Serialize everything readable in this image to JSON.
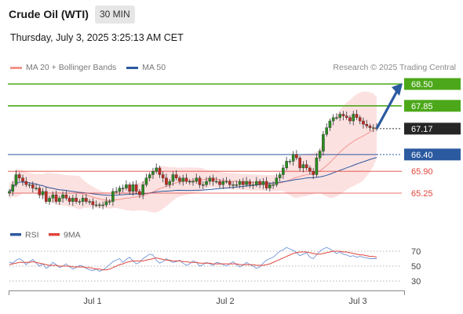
{
  "header": {
    "title": "Crude Oil (WTI)",
    "timeframe": "30 MIN",
    "datetime": "Thursday, July 3, 2025 3:25:13 AM CET"
  },
  "legend": {
    "items": [
      {
        "label": "MA 20 + Bollinger Bands",
        "color": "#f2948e"
      },
      {
        "label": "MA 50",
        "color": "#2c5aa0"
      }
    ]
  },
  "credit": "Research © 2025 Trading Central",
  "colors": {
    "green": "#4ca81a",
    "blue": "#2c5aa0",
    "red": "#e0463c",
    "dark": "#262626",
    "band": "#fbdcdc",
    "candle_up": "#2b8a20",
    "candle_down": "#c22a1f"
  },
  "chart_data": [
    {
      "type": "candlestick",
      "ylim": [
        64.5,
        69.0
      ],
      "x_ticks": [
        "Jul 1",
        "Jul 2",
        "Jul 3"
      ],
      "levels": [
        {
          "label": "68.50",
          "value": 68.5,
          "kind": "target",
          "color": "#4ca81a"
        },
        {
          "label": "67.85",
          "value": 67.85,
          "kind": "resistance",
          "color": "#4ca81a"
        },
        {
          "label": "67.17",
          "value": 67.17,
          "kind": "last",
          "color": "#262626"
        },
        {
          "label": "66.40",
          "value": 66.4,
          "kind": "pivot",
          "color": "#2c5aa0"
        },
        {
          "label": "65.90",
          "value": 65.9,
          "kind": "support",
          "color": "#e0463c"
        },
        {
          "label": "65.25",
          "value": 65.25,
          "kind": "support",
          "color": "#e0463c"
        }
      ],
      "close_series": [
        65.3,
        65.5,
        65.8,
        65.7,
        65.6,
        65.5,
        65.5,
        65.4,
        65.4,
        65.2,
        65.3,
        65.0,
        65.1,
        65.2,
        65.0,
        65.1,
        65.2,
        65.1,
        65.0,
        65.1,
        65.0,
        65.0,
        65.1,
        65.0,
        65.0,
        64.9,
        64.9,
        64.9,
        64.9,
        65.0,
        65.0,
        65.3,
        65.3,
        65.4,
        65.4,
        65.5,
        65.3,
        65.5,
        65.3,
        65.2,
        65.5,
        65.7,
        65.8,
        65.9,
        66.0,
        65.8,
        65.7,
        65.5,
        65.6,
        65.8,
        65.7,
        65.6,
        65.7,
        65.6,
        65.6,
        65.6,
        65.7,
        65.5,
        65.5,
        65.6,
        65.7,
        65.6,
        65.6,
        65.5,
        65.6,
        65.6,
        65.5,
        65.5,
        65.5,
        65.6,
        65.5,
        65.6,
        65.5,
        65.5,
        65.6,
        65.5,
        65.6,
        65.4,
        65.5,
        65.5,
        65.7,
        65.8,
        66.0,
        66.2,
        66.2,
        66.4,
        66.3,
        66.0,
        66.1,
        66.0,
        65.9,
        65.8,
        66.3,
        66.5,
        67.0,
        67.2,
        67.4,
        67.5,
        67.5,
        67.6,
        67.55,
        67.5,
        67.4,
        67.6,
        67.5,
        67.4,
        67.3,
        67.25,
        67.2,
        67.2,
        67.17
      ]
    },
    {
      "type": "line",
      "title": "RSI",
      "series": [
        {
          "name": "RSI",
          "color": "#2c5aa0"
        },
        {
          "name": "9MA",
          "color": "#e0463c"
        }
      ],
      "ylim": [
        20,
        80
      ],
      "y_ticks": [
        70,
        50,
        30
      ],
      "rsi": [
        55,
        54,
        58,
        60,
        57,
        52,
        56,
        59,
        54,
        50,
        53,
        47,
        50,
        55,
        52,
        48,
        50,
        53,
        49,
        46,
        48,
        51,
        50,
        47,
        45,
        44,
        46,
        43,
        45,
        48,
        52,
        56,
        58,
        60,
        55,
        59,
        62,
        57,
        53,
        55,
        60,
        63,
        66,
        65,
        58,
        54,
        56,
        60,
        57,
        55,
        56,
        58,
        54,
        51,
        53,
        57,
        55,
        50,
        52,
        55,
        53,
        51,
        55,
        54,
        52,
        50,
        53,
        56,
        52,
        49,
        51,
        55,
        52,
        50,
        47,
        49,
        54,
        58,
        60,
        62,
        66,
        70,
        72,
        75,
        73,
        71,
        68,
        64,
        66,
        68,
        62,
        60,
        65,
        70,
        73,
        75,
        73,
        70,
        67,
        69,
        66,
        65,
        63,
        64,
        62,
        63,
        62,
        61,
        60,
        60,
        60
      ],
      "ma9": [
        52,
        53,
        54,
        55,
        55,
        55,
        55,
        56,
        55,
        54,
        53,
        52,
        51,
        51,
        51,
        50,
        50,
        50,
        50,
        49,
        49,
        49,
        49,
        48,
        48,
        47,
        46,
        46,
        45,
        45,
        46,
        48,
        50,
        52,
        53,
        55,
        56,
        57,
        57,
        57,
        57,
        58,
        59,
        60,
        61,
        60,
        59,
        58,
        58,
        57,
        57,
        57,
        56,
        56,
        55,
        55,
        55,
        54,
        54,
        54,
        54,
        53,
        53,
        53,
        53,
        53,
        53,
        53,
        53,
        52,
        52,
        52,
        52,
        52,
        51,
        51,
        51,
        52,
        53,
        55,
        57,
        59,
        61,
        63,
        65,
        67,
        68,
        69,
        69,
        69,
        68,
        67,
        66,
        66,
        67,
        68,
        69,
        70,
        70,
        70,
        69,
        69,
        68,
        67,
        66,
        65,
        65,
        64,
        63,
        63,
        62
      ]
    }
  ]
}
